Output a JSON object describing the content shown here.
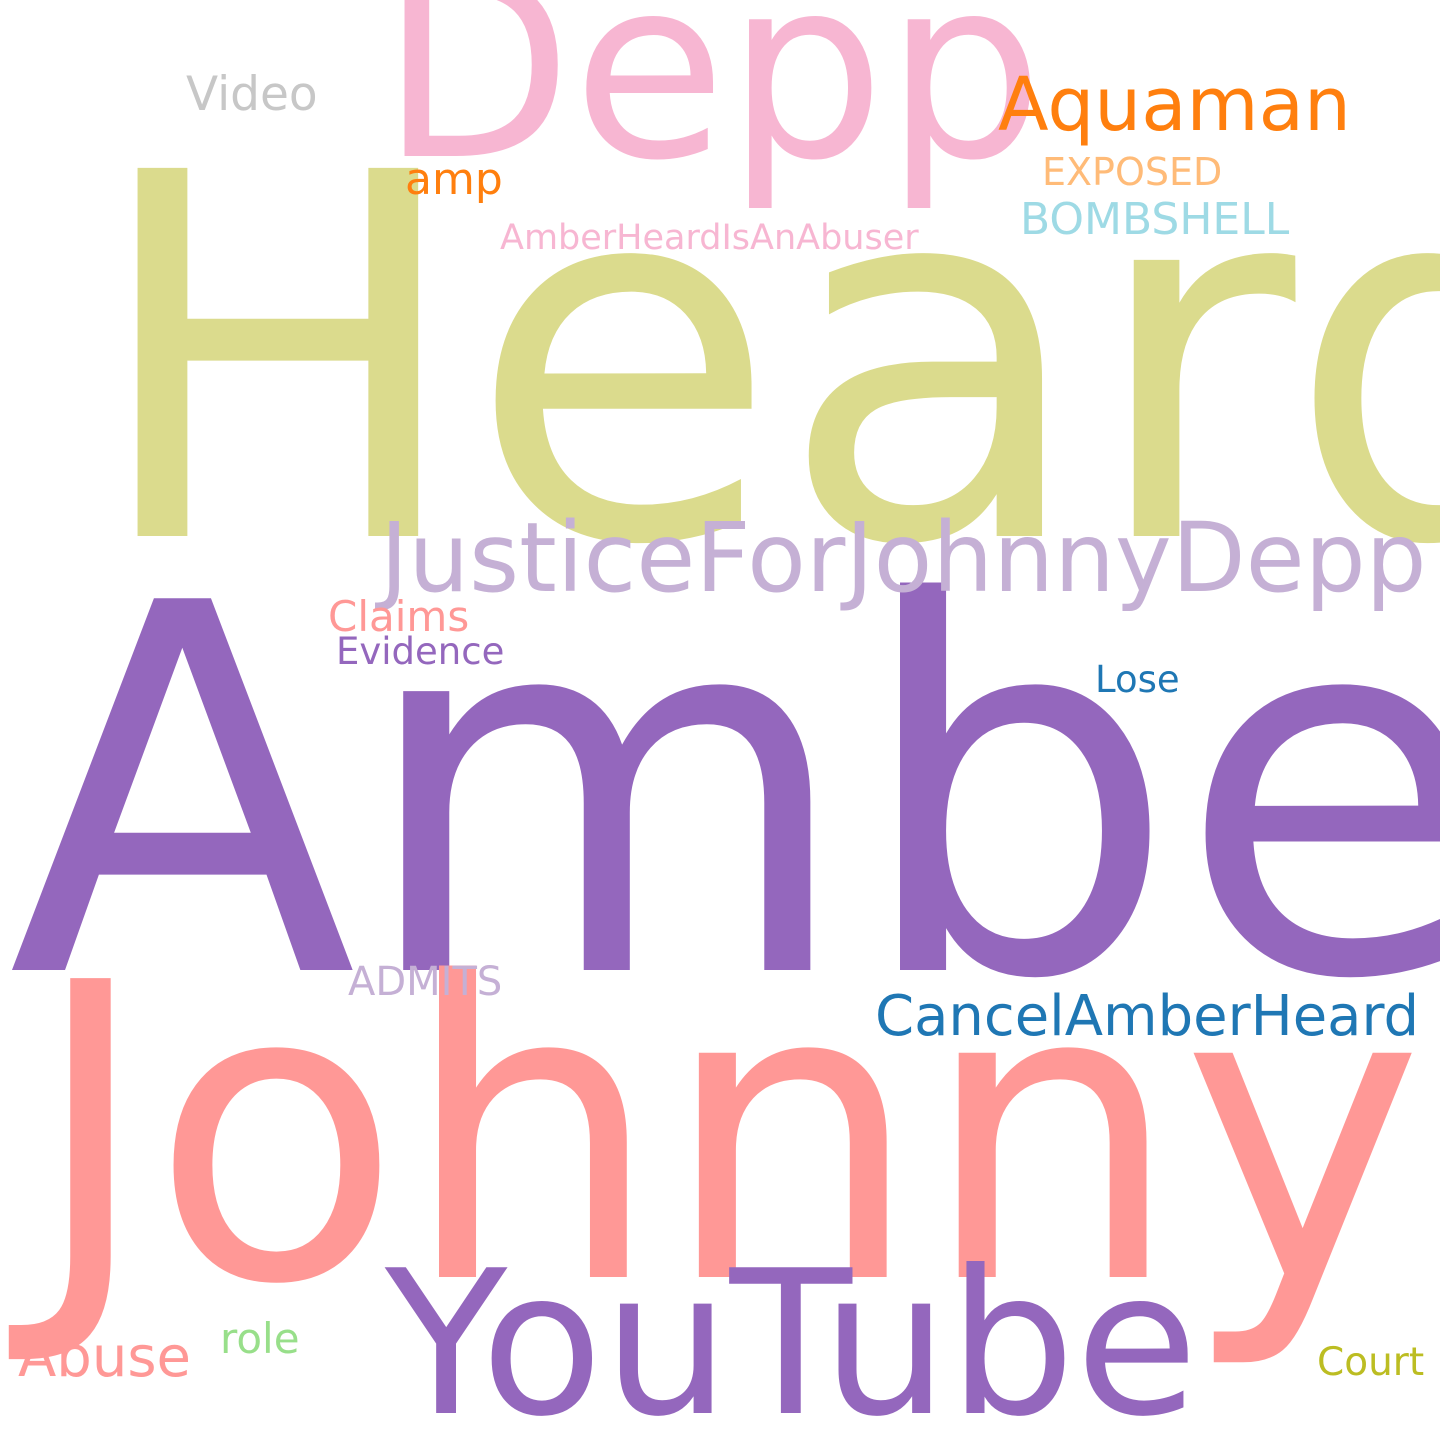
{
  "word_cloud": {
    "words": [
      {
        "text": "Heard",
        "color": "#dbdb8d"
      },
      {
        "text": "Amber",
        "color": "#9467bd"
      },
      {
        "text": "Johnny",
        "color": "#ff9896"
      },
      {
        "text": "Depp",
        "color": "#f7b6d2"
      },
      {
        "text": "YouTube",
        "color": "#9467bd"
      },
      {
        "text": "JusticeForJohnnyDepp",
        "color": "#c5b0d5"
      },
      {
        "text": "Aquaman",
        "color": "#ff7f0e"
      },
      {
        "text": "CancelAmberHeard",
        "color": "#1f77b4"
      },
      {
        "text": "Abuse",
        "color": "#ff9896"
      },
      {
        "text": "amp",
        "color": "#ff7f0e"
      },
      {
        "text": "Video",
        "color": "#c7c7c7"
      },
      {
        "text": "EXPOSED",
        "color": "#ffbb78"
      },
      {
        "text": "BOMBSHELL",
        "color": "#9edae5"
      },
      {
        "text": "AmberHeardIsAnAbuser",
        "color": "#f7b6d2"
      },
      {
        "text": "Claims",
        "color": "#ff9896"
      },
      {
        "text": "Evidence",
        "color": "#9467bd"
      },
      {
        "text": "Lose",
        "color": "#1f77b4"
      },
      {
        "text": "ADMITS",
        "color": "#c5b0d5"
      },
      {
        "text": "role",
        "color": "#98df8a"
      },
      {
        "text": "Court",
        "color": "#bcbd22"
      }
    ]
  }
}
